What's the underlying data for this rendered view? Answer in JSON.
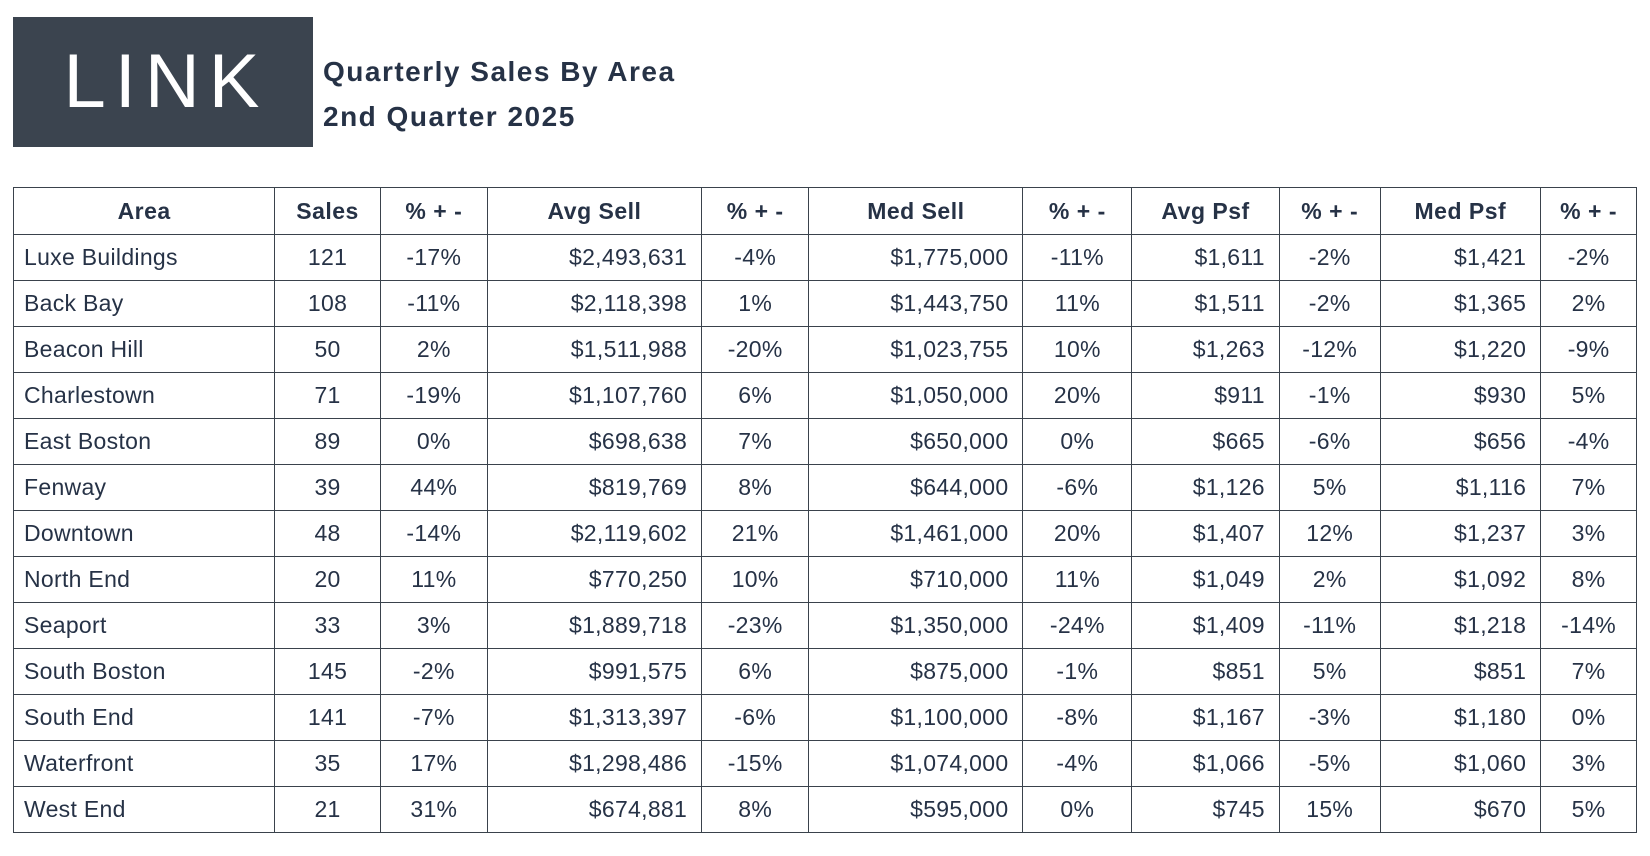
{
  "brand": {
    "logo_text": "LINK"
  },
  "header": {
    "title_line1": "Quarterly Sales By Area",
    "title_line2": "2nd Quarter 2025"
  },
  "colors": {
    "text": "#263246",
    "border": "#3a424c",
    "background": "#ffffff",
    "logo_background": "#3b444f",
    "logo_foreground": "#ffffff"
  },
  "chart_data": {
    "type": "table",
    "title": "Quarterly Sales By Area",
    "subtitle": "2nd Quarter 2025",
    "headers": [
      "Area",
      "Sales",
      "% + -",
      "Avg Sell",
      "% + -",
      "Med Sell",
      "% + -",
      "Avg Psf",
      "% + -",
      "Med Psf",
      "% + -"
    ],
    "column_align": [
      "left",
      "center",
      "center",
      "right",
      "center",
      "right",
      "center",
      "right",
      "center",
      "right",
      "center"
    ],
    "column_widths_pct": [
      16.1,
      6.5,
      6.6,
      13.2,
      6.6,
      13.2,
      6.7,
      9.1,
      6.2,
      9.9,
      5.9
    ],
    "rows": [
      [
        "Luxe Buildings",
        "121",
        "-17%",
        "$2,493,631",
        "-4%",
        "$1,775,000",
        "-11%",
        "$1,611",
        "-2%",
        "$1,421",
        "-2%"
      ],
      [
        "Back Bay",
        "108",
        "-11%",
        "$2,118,398",
        "1%",
        "$1,443,750",
        "11%",
        "$1,511",
        "-2%",
        "$1,365",
        "2%"
      ],
      [
        "Beacon Hill",
        "50",
        "2%",
        "$1,511,988",
        "-20%",
        "$1,023,755",
        "10%",
        "$1,263",
        "-12%",
        "$1,220",
        "-9%"
      ],
      [
        "Charlestown",
        "71",
        "-19%",
        "$1,107,760",
        "6%",
        "$1,050,000",
        "20%",
        "$911",
        "-1%",
        "$930",
        "5%"
      ],
      [
        "East Boston",
        "89",
        "0%",
        "$698,638",
        "7%",
        "$650,000",
        "0%",
        "$665",
        "-6%",
        "$656",
        "-4%"
      ],
      [
        "Fenway",
        "39",
        "44%",
        "$819,769",
        "8%",
        "$644,000",
        "-6%",
        "$1,126",
        "5%",
        "$1,116",
        "7%"
      ],
      [
        "Downtown",
        "48",
        "-14%",
        "$2,119,602",
        "21%",
        "$1,461,000",
        "20%",
        "$1,407",
        "12%",
        "$1,237",
        "3%"
      ],
      [
        "North End",
        "20",
        "11%",
        "$770,250",
        "10%",
        "$710,000",
        "11%",
        "$1,049",
        "2%",
        "$1,092",
        "8%"
      ],
      [
        "Seaport",
        "33",
        "3%",
        "$1,889,718",
        "-23%",
        "$1,350,000",
        "-24%",
        "$1,409",
        "-11%",
        "$1,218",
        "-14%"
      ],
      [
        "South Boston",
        "145",
        "-2%",
        "$991,575",
        "6%",
        "$875,000",
        "-1%",
        "$851",
        "5%",
        "$851",
        "7%"
      ],
      [
        "South End",
        "141",
        "-7%",
        "$1,313,397",
        "-6%",
        "$1,100,000",
        "-8%",
        "$1,167",
        "-3%",
        "$1,180",
        "0%"
      ],
      [
        "Waterfront",
        "35",
        "17%",
        "$1,298,486",
        "-15%",
        "$1,074,000",
        "-4%",
        "$1,066",
        "-5%",
        "$1,060",
        "3%"
      ],
      [
        "West End",
        "21",
        "31%",
        "$674,881",
        "8%",
        "$595,000",
        "0%",
        "$745",
        "15%",
        "$670",
        "5%"
      ]
    ]
  }
}
